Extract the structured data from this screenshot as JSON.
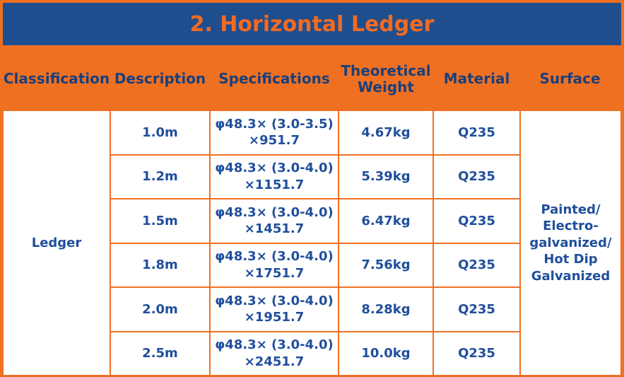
{
  "header": {
    "title": "2. Horizontal Ledger"
  },
  "table": {
    "columns": [
      "Classification",
      "Description",
      "Specifications",
      "Theoretical Weight",
      "Material",
      "Surface"
    ],
    "classification": "Ledger",
    "surface": "Painted/ Electro-galvanized/ Hot Dip Galvanized",
    "rows": [
      [
        "1.0m",
        [
          "φ48.3× (3.0-3.5)",
          "×951.7"
        ],
        "4.67kg",
        "Q235"
      ],
      [
        "1.2m",
        [
          "φ48.3× (3.0-4.0)",
          "×1151.7"
        ],
        "5.39kg",
        "Q235"
      ],
      [
        "1.5m",
        [
          "φ48.3× (3.0-4.0)",
          "×1451.7"
        ],
        "6.47kg",
        "Q235"
      ],
      [
        "1.8m",
        [
          "φ48.3× (3.0-4.0)",
          "×1751.7"
        ],
        "7.56kg",
        "Q235"
      ],
      [
        "2.0m",
        [
          "φ48.3× (3.0-4.0)",
          "×1951.7"
        ],
        "8.28kg",
        "Q235"
      ],
      [
        "2.5m",
        [
          "φ48.3× (3.0-4.0)",
          "×2451.7"
        ],
        "10.0kg",
        "Q235"
      ]
    ]
  }
}
